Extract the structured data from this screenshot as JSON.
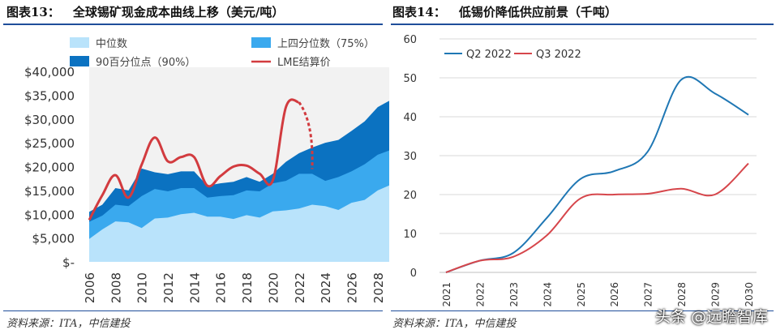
{
  "left_title": {
    "label": "图表13：",
    "text": "全球锡矿现金成本曲线上移（美元/吨）"
  },
  "right_title": {
    "label": "图表14：",
    "text": "低锡价降低供应前景（千吨）"
  },
  "left_source": "资料来源：ITA，中信建投",
  "right_source": "资料来源：ITA，中信建投",
  "watermark": "头条 @远瞻智库",
  "colors": {
    "rule": "#1f4e9a",
    "median": "#b9e3fb",
    "q75": "#3aa9ee",
    "p90": "#0b72c1",
    "lme": "#d23b3f",
    "q2": "#1f77b4",
    "q3": "#d6464b"
  },
  "chart_data": [
    {
      "type": "area",
      "title": "全球锡矿现金成本曲线上移（美元/吨）",
      "x": [
        2006,
        2007,
        2008,
        2009,
        2010,
        2011,
        2012,
        2013,
        2014,
        2015,
        2016,
        2017,
        2018,
        2019,
        2020,
        2021,
        2022,
        2023,
        2024,
        2025,
        2026,
        2027,
        2028,
        2029
      ],
      "xtick_labels": [
        "2006",
        "2008",
        "2010",
        "2012",
        "2014",
        "2016",
        "2018",
        "2020",
        "2022",
        "2024",
        "2026",
        "2028"
      ],
      "ytick_labels": [
        "$-",
        "$5,000",
        "$10,000",
        "$15,000",
        "$20,000",
        "$25,000",
        "$30,000",
        "$35,000",
        "$40,000"
      ],
      "ylim": [
        0,
        40000
      ],
      "series": [
        {
          "name": "中位数",
          "values": [
            4800,
            6800,
            8500,
            8300,
            7100,
            9100,
            9300,
            10000,
            10300,
            9500,
            9500,
            9000,
            9800,
            9300,
            10600,
            10800,
            11200,
            12000,
            11700,
            10900,
            12400,
            13000,
            15000,
            16200
          ]
        },
        {
          "name": "上四分位数（75%）",
          "values": [
            8400,
            9700,
            12000,
            11700,
            13800,
            15300,
            14800,
            15500,
            15500,
            13500,
            13800,
            14000,
            15000,
            14800,
            16500,
            17000,
            18500,
            18500,
            17000,
            17800,
            19000,
            20500,
            22500,
            23500
          ]
        },
        {
          "name": "90百分位点（90%）",
          "values": [
            10500,
            12000,
            15500,
            15000,
            19600,
            18800,
            18400,
            19000,
            19000,
            16000,
            16500,
            16800,
            17800,
            16800,
            18500,
            21000,
            22800,
            24000,
            25000,
            25600,
            27500,
            29500,
            32500,
            34000
          ]
        },
        {
          "name": "LME结算价",
          "x": [
            2006,
            2007,
            2008,
            2009,
            2010,
            2011,
            2012,
            2013,
            2014,
            2015,
            2016,
            2017,
            2018,
            2019,
            2020,
            2021,
            2022
          ],
          "values": [
            8800,
            14000,
            18200,
            13500,
            20400,
            26100,
            21100,
            22000,
            22000,
            16000,
            18000,
            20000,
            20200,
            18500,
            17100,
            32500,
            33500
          ],
          "projection": [
            2022,
            2023
          ],
          "projection_values": [
            33500,
            19500
          ]
        }
      ]
    },
    {
      "type": "line",
      "title": "低锡价降低供应前景（千吨）",
      "x": [
        "2021",
        "2022",
        "2023",
        "2024",
        "2025",
        "2026",
        "2027",
        "2028",
        "2029",
        "2030"
      ],
      "ytick_labels": [
        "0",
        "10",
        "20",
        "30",
        "40",
        "50",
        "60"
      ],
      "ylim": [
        0,
        60
      ],
      "series": [
        {
          "name": "Q2 2022",
          "values": [
            0,
            3,
            5,
            14,
            24,
            26,
            31,
            49.5,
            46,
            40.5
          ]
        },
        {
          "name": "Q3 2022",
          "values": [
            0,
            3,
            4,
            9.5,
            19,
            20,
            20.2,
            21.5,
            20,
            28
          ]
        }
      ]
    }
  ]
}
